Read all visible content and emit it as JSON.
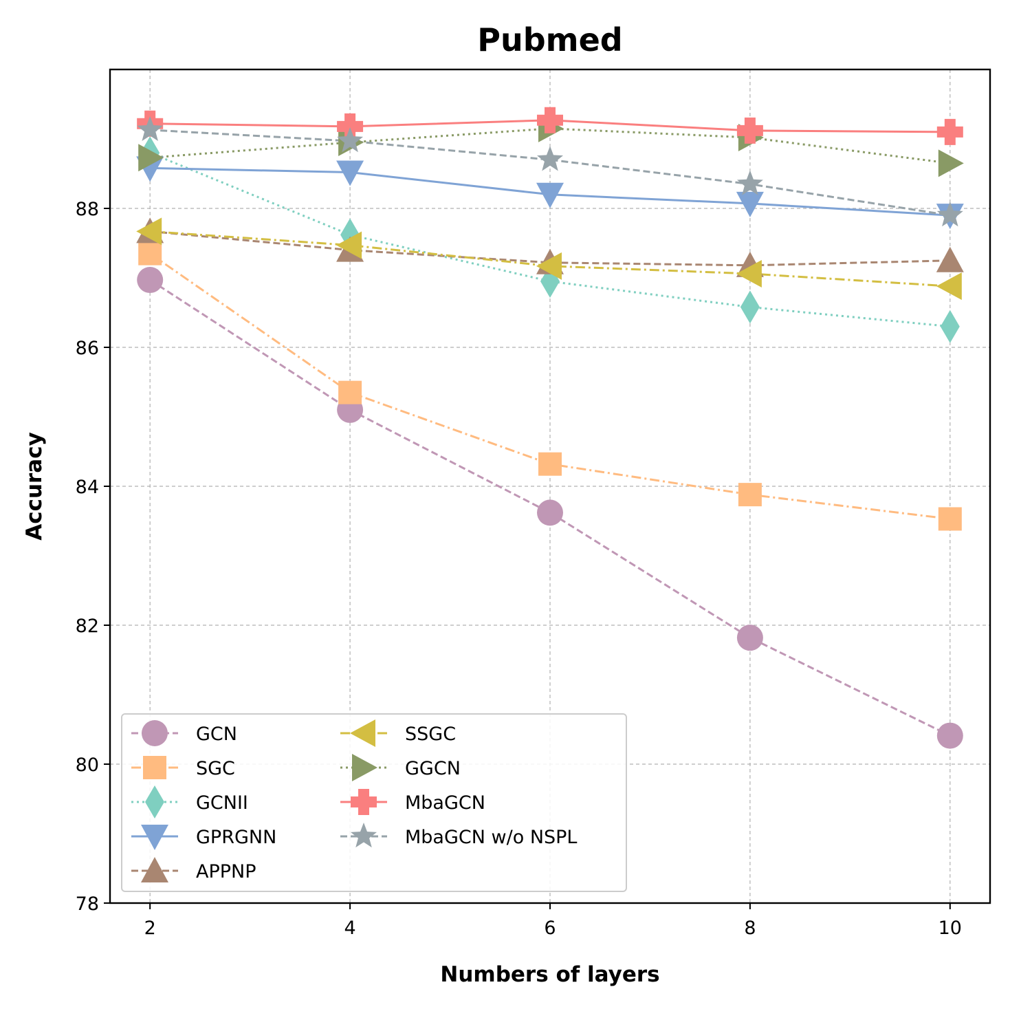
{
  "chart_data": {
    "type": "line",
    "title": "Pubmed",
    "xlabel": "Numbers of layers",
    "ylabel": "Accuracy",
    "x": [
      2,
      4,
      6,
      8,
      10
    ],
    "x_ticks": [
      "2",
      "4",
      "6",
      "8",
      "10"
    ],
    "xlim": [
      1.6,
      10.4
    ],
    "ylim": [
      78,
      90
    ],
    "y_ticks": [
      "78",
      "80",
      "82",
      "84",
      "86",
      "88"
    ],
    "grid": true,
    "legend_position": "lower-left",
    "series": [
      {
        "name": "GCN",
        "values": [
          86.97,
          85.1,
          83.62,
          81.82,
          80.41
        ],
        "color": "#c097b5",
        "marker": "circle",
        "dash": "dashed"
      },
      {
        "name": "SGC",
        "values": [
          87.35,
          85.35,
          84.32,
          83.88,
          83.53
        ],
        "color": "#ffbb80",
        "marker": "square",
        "dash": "dashdot"
      },
      {
        "name": "GCNII",
        "values": [
          88.8,
          87.62,
          86.95,
          86.58,
          86.3
        ],
        "color": "#7fcfc0",
        "marker": "diamond",
        "dash": "dotted"
      },
      {
        "name": "GPRGNN",
        "values": [
          88.58,
          88.52,
          88.2,
          88.07,
          87.9
        ],
        "color": "#7fa3d5",
        "marker": "triangle-down",
        "dash": "solid"
      },
      {
        "name": "APPNP",
        "values": [
          87.67,
          87.4,
          87.22,
          87.18,
          87.25
        ],
        "color": "#a98671",
        "marker": "triangle-up",
        "dash": "dashed"
      },
      {
        "name": "SSGC",
        "values": [
          87.67,
          87.47,
          87.17,
          87.06,
          86.88
        ],
        "color": "#d3be42",
        "marker": "triangle-left",
        "dash": "dashdot"
      },
      {
        "name": "GGCN",
        "values": [
          88.73,
          88.95,
          89.15,
          89.02,
          88.65
        ],
        "color": "#899a65",
        "marker": "triangle-right",
        "dash": "dotted"
      },
      {
        "name": "MbaGCN",
        "values": [
          89.22,
          89.18,
          89.27,
          89.12,
          89.1
        ],
        "color": "#fa7f7f",
        "marker": "plus",
        "dash": "solid"
      },
      {
        "name": "MbaGCN w/o NSPL",
        "values": [
          89.13,
          88.97,
          88.7,
          88.35,
          87.9
        ],
        "color": "#97a3a9",
        "marker": "star",
        "dash": "dashed"
      }
    ]
  }
}
